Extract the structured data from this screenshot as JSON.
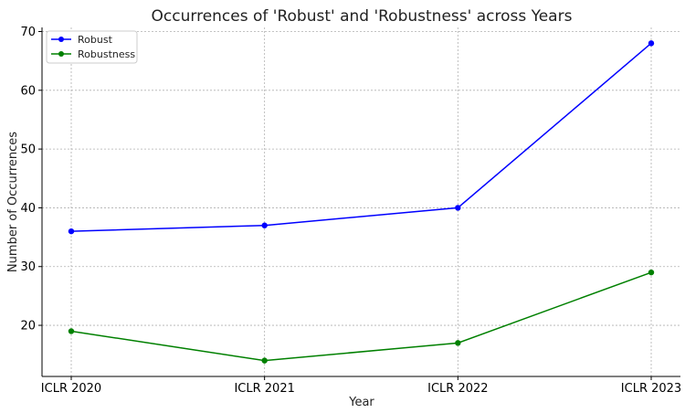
{
  "chart_data": {
    "type": "line",
    "title": "Occurrences of 'Robust' and 'Robustness' across Years",
    "xlabel": "Year",
    "ylabel": "Number of Occurrences",
    "categories": [
      "ICLR 2020",
      "ICLR 2021",
      "ICLR 2022",
      "ICLR 2023"
    ],
    "series": [
      {
        "name": "Robust",
        "values": [
          36,
          37,
          40,
          68
        ],
        "color": "#0000ff"
      },
      {
        "name": "Robustness",
        "values": [
          19,
          14,
          17,
          29
        ],
        "color": "#008000"
      }
    ],
    "yticks": [
      20,
      30,
      40,
      50,
      60,
      70
    ],
    "ylim": [
      11.3,
      70.7
    ],
    "grid": true,
    "legend_position": "top-left"
  }
}
